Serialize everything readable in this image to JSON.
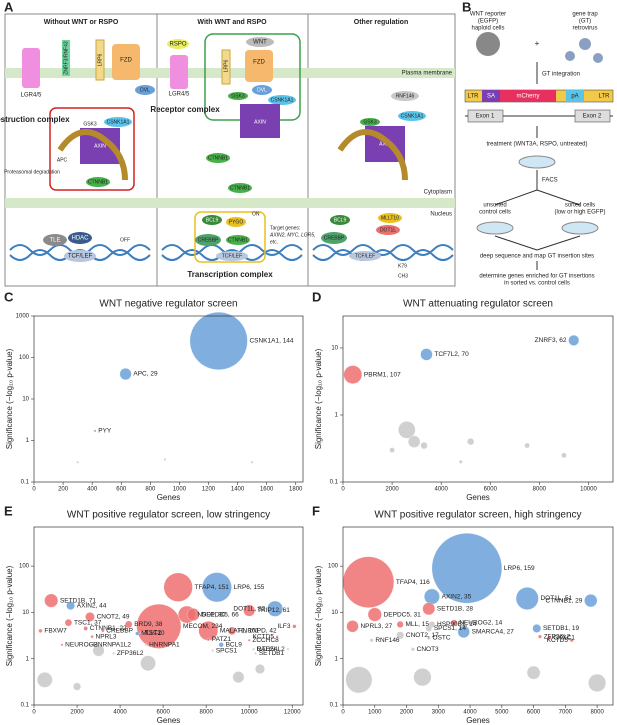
{
  "panel_letters": [
    "A",
    "B",
    "C",
    "D",
    "E",
    "F"
  ],
  "panel_a": {
    "columns": [
      "Without WNT or RSPO",
      "With WNT and RSPO",
      "Other regulation"
    ],
    "compartments": [
      "Plasma membrane",
      "Cytoplasm",
      "Nucleus"
    ],
    "complexes": [
      "Destruction complex",
      "Receptor complex",
      "Transcription complex"
    ],
    "notes": [
      "Proteasomal degradation",
      "OFF",
      "ON",
      "Target genes:",
      "AXIN2, MYC, LGR5,",
      "etc."
    ],
    "labels": [
      "LGR4/5",
      "ZNRF3/RNF43",
      "LRP6",
      "FZD",
      "DVL",
      "CSNK1A1",
      "GSK3",
      "AXIN",
      "APC",
      "CTNNB1",
      "TLE",
      "HDAC",
      "TCF/LEF",
      "RSPO",
      "LGR4/5",
      "WNT",
      "LRP6",
      "FZD",
      "DVL",
      "GSK3",
      "CSNK1A1",
      "AXIN",
      "CTNNB1",
      "CTNNB1",
      "BCL9",
      "PYGO",
      "CREBBP",
      "CTNNB1",
      "TCF/LEF",
      "RNF146",
      "CSNK1A1",
      "GSK3",
      "AXIN",
      "BCL9",
      "CREBBP",
      "MLLT10",
      "DOT1L",
      "TCF/LEF",
      "K79",
      "CH3"
    ]
  },
  "panel_b": {
    "texts": [
      "WNT reporter",
      "(EGFP)",
      "haploid cells",
      "gene trap",
      "(GT)",
      "retrovirus",
      "GT integration",
      "treatment (WNT3A, RSPO, untreated)",
      "FACS",
      "unsorted",
      "control cells",
      "sorted cells",
      "(low or high EGFP)",
      "deep sequence and map GT insertion sites",
      "determine genes enriched for GT insertions",
      "in sorted vs. control cells"
    ],
    "construct": [
      "LTR",
      "SA",
      "mCherry",
      "pA",
      "LTR"
    ],
    "exons": [
      "Exon 1",
      "Exon 2"
    ]
  },
  "chart_data": [
    {
      "type": "scatter",
      "title": "WNT negative regulator screen",
      "xlabel": "Genes",
      "ylabel": "Significance (−log₁₀ p-value)",
      "log_y": true,
      "xlim": [
        0,
        1850
      ],
      "xticks": [
        0,
        200,
        400,
        600,
        800,
        1000,
        1200,
        1400,
        1600,
        1800
      ],
      "ylim": [
        0.1,
        1000
      ],
      "yticks": [
        0.1,
        1,
        10,
        100,
        1000
      ],
      "x": [
        1270,
        630,
        420,
        300,
        900,
        1500
      ],
      "values": [
        250,
        40,
        1.7,
        0.3,
        0.35,
        0.3
      ],
      "sizes": [
        144,
        29,
        3,
        3,
        3,
        3
      ],
      "labels": [
        "CSNK1A1, 144",
        "APC, 29",
        "PYY",
        null,
        null,
        null
      ],
      "colors": [
        "#6aa0d8",
        "#6aa0d8",
        "#999999",
        "#c8c8c8",
        "#c8c8c8",
        "#c8c8c8"
      ]
    },
    {
      "type": "scatter",
      "title": "WNT attenuating regulator screen",
      "xlabel": "Genes",
      "ylabel": "Significance (−log₁₀ p-value)",
      "log_y": true,
      "xlim": [
        0,
        11000
      ],
      "xticks": [
        0,
        2000,
        4000,
        6000,
        8000,
        10000
      ],
      "ylim": [
        0.1,
        30
      ],
      "yticks": [
        0.1,
        1,
        10
      ],
      "x": [
        9400,
        3400,
        400,
        2600,
        2900,
        3300,
        5200,
        7500,
        2000,
        9000,
        4800
      ],
      "values": [
        13,
        8,
        4,
        0.6,
        0.4,
        0.35,
        0.4,
        0.35,
        0.3,
        0.25,
        0.2
      ],
      "sizes": [
        62,
        70,
        107,
        100,
        70,
        40,
        40,
        30,
        30,
        30,
        20
      ],
      "labels": [
        "ZNRF3, 62",
        "TCF7L2, 70",
        "PBRM1, 107",
        null,
        null,
        null,
        null,
        null,
        null,
        null,
        null
      ],
      "colors": [
        "#6aa0d8",
        "#6aa0d8",
        "#ef6f6f",
        "#c8c8c8",
        "#c8c8c8",
        "#c8c8c8",
        "#c8c8c8",
        "#c8c8c8",
        "#c8c8c8",
        "#c8c8c8",
        "#c8c8c8"
      ]
    },
    {
      "type": "scatter",
      "title": "WNT positive regulator screen, low stringency",
      "xlabel": "Genes",
      "ylabel": "Significance (−log₁₀ p-value)",
      "log_y": true,
      "xlim": [
        0,
        12500
      ],
      "xticks": [
        0,
        2000,
        4000,
        6000,
        8000,
        10000,
        12000
      ],
      "ylim": [
        0.1,
        700
      ],
      "yticks": [
        0.1,
        1,
        10,
        100
      ],
      "x": [
        800,
        1700,
        2600,
        1600,
        2400,
        300,
        1300,
        2700,
        3200,
        2600,
        3700,
        4400,
        4800,
        5000,
        5200,
        5800,
        6700,
        7100,
        7400,
        8500,
        10000,
        11200,
        8100,
        9200,
        8100,
        8300,
        8700,
        10000,
        10200,
        10300,
        11300,
        11800,
        12100,
        500,
        3000,
        5300,
        9500,
        2000,
        10500
      ],
      "values": [
        18,
        14,
        8,
        6,
        4.5,
        4,
        2,
        3,
        4,
        2,
        1.3,
        5.5,
        3.5,
        3.6,
        2,
        5,
        35,
        9,
        9,
        35,
        11,
        12,
        4,
        4,
        2.6,
        1.5,
        2,
        2.5,
        1.6,
        1.3,
        3,
        1.6,
        5,
        0.35,
        1.5,
        0.8,
        0.4,
        0.25,
        0.6
      ],
      "sizes": [
        71,
        44,
        49,
        37,
        22,
        20,
        10,
        15,
        15,
        8,
        8,
        38,
        20,
        10,
        8,
        234,
        151,
        90,
        66,
        155,
        61,
        82,
        101,
        42,
        15,
        8,
        25,
        10,
        8,
        8,
        10,
        8,
        20,
        80,
        60,
        80,
        60,
        40,
        50
      ],
      "labels": [
        "SETD1B, 71",
        "AXIN2, 44",
        "CNOT2, 49",
        "TSC1, 37",
        "CTNNB1, 22",
        "FBXW7",
        "NEUROG2",
        "NPRL3",
        "CREBBP",
        "HNRNPA1L2",
        "ZFP36L2",
        "BRD9, 38",
        "MLLT10",
        "TSC2",
        "HNRNPA1",
        "MECOM, 234",
        "TFAP4, 151",
        "NSD1, 90",
        "DEPDC5, 66",
        "LRP6, 155",
        "TRIP12, 61",
        "DOT1L, 82",
        "MALAT1, 101",
        "HNRNPD, 42",
        "PATZ1",
        "SPCS1",
        "BCL9",
        "ZCCHC8",
        "GTF2I",
        "SETDB1",
        "KCTD5",
        "RAD54L2",
        "ILF3",
        null,
        null,
        null,
        null,
        null,
        null
      ],
      "colors": [
        "#ef6f6f",
        "#6aa0d8",
        "#ef6f6f",
        "#ef6f6f",
        "#ef6f6f",
        "#ef6f6f",
        "#ef6f6f",
        "#ef6f6f",
        "#ef6f6f",
        "#c8c8c8",
        "#c8c8c8",
        "#ef6f6f",
        "#6aa0d8",
        "#ef6f6f",
        "#c8c8c8",
        "#ef6f6f",
        "#ef6f6f",
        "#ef6f6f",
        "#ef6f6f",
        "#6aa0d8",
        "#ef6f6f",
        "#6aa0d8",
        "#ef6f6f",
        "#ef6f6f",
        "#ef6f6f",
        "#c8c8c8",
        "#6aa0d8",
        "#ef6f6f",
        "#c8c8c8",
        "#c8c8c8",
        "#ef6f6f",
        "#c8c8c8",
        "#ef6f6f",
        "#c8c8c8",
        "#c8c8c8",
        "#c8c8c8",
        "#c8c8c8",
        "#c8c8c8",
        "#c8c8c8"
      ]
    },
    {
      "type": "scatter",
      "title": "WNT positive regulator screen, high stringency",
      "xlabel": "Genes",
      "ylabel": "Significance (−log₁₀ p-value)",
      "log_y": true,
      "xlim": [
        0,
        8500
      ],
      "xticks": [
        0,
        1000,
        2000,
        3000,
        4000,
        5000,
        6000,
        7000,
        8000
      ],
      "ylim": [
        0.1,
        700
      ],
      "yticks": [
        0.1,
        1,
        10,
        100
      ],
      "x": [
        800,
        3900,
        2800,
        2700,
        1000,
        5800,
        7800,
        300,
        1800,
        2800,
        2700,
        3500,
        1800,
        2700,
        3800,
        900,
        2200,
        6100,
        6200,
        6500,
        7200,
        500,
        2500,
        8000,
        6000
      ],
      "values": [
        45,
        90,
        22,
        12,
        9,
        20,
        18,
        5,
        5.5,
        5.5,
        4.5,
        6,
        3.2,
        2.8,
        3.8,
        2.5,
        1.6,
        4.5,
        3,
        2.8,
        2.5,
        0.35,
        0.4,
        0.3,
        0.5
      ],
      "sizes": [
        116,
        159,
        35,
        28,
        31,
        51,
        29,
        27,
        15,
        14,
        14,
        14,
        17,
        8,
        27,
        8,
        8,
        19,
        8,
        8,
        8,
        60,
        40,
        40,
        30
      ],
      "labels": [
        "TFAP4, 116",
        "LRP6, 159",
        "AXIN2, 35",
        "SETD1B, 28",
        "DEPDC5, 31",
        "DOT1L, 51",
        "CTNNB1, 29",
        "NPRL3, 27",
        "MLL, 15",
        "HSP90B1, 14",
        "SPCS1, 14",
        "NEUROG2, 14",
        "CNOT2, 17",
        "OSTC",
        "SMARCA4, 27",
        "RNF146",
        "CNOT3",
        "SETDB1, 19",
        "ZFP36L2",
        "CXXC1",
        "KCTD5",
        null,
        null,
        null,
        null
      ],
      "colors": [
        "#ef6f6f",
        "#6aa0d8",
        "#6aa0d8",
        "#ef6f6f",
        "#ef6f6f",
        "#6aa0d8",
        "#6aa0d8",
        "#ef6f6f",
        "#ef6f6f",
        "#c8c8c8",
        "#c8c8c8",
        "#ef6f6f",
        "#c8c8c8",
        "#c8c8c8",
        "#6aa0d8",
        "#c8c8c8",
        "#c8c8c8",
        "#6aa0d8",
        "#ef6f6f",
        "#ef6f6f",
        "#ef6f6f",
        "#c8c8c8",
        "#c8c8c8",
        "#c8c8c8",
        "#c8c8c8"
      ]
    }
  ]
}
